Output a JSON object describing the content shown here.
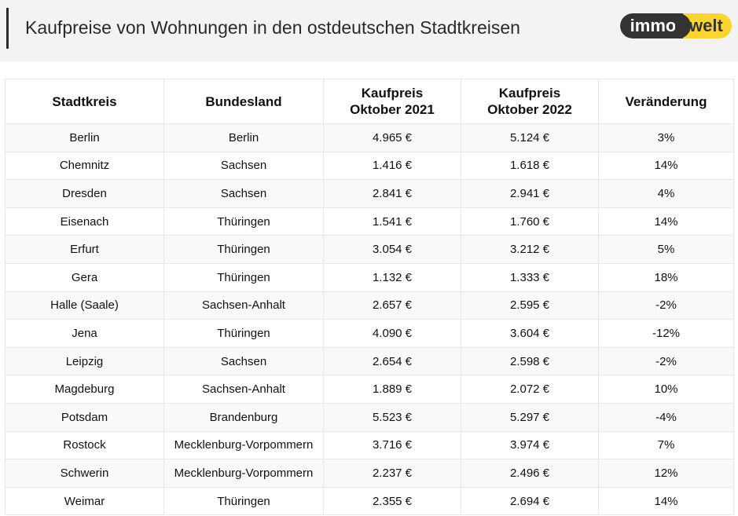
{
  "header": {
    "title": "Kaufpreise von Wohnungen in den ostdeutschen Stadtkreisen",
    "logo": {
      "left_text": "immo",
      "right_text": "welt",
      "brand_yellow": "#fed52e",
      "brand_dark": "#333333"
    }
  },
  "table": {
    "columns": [
      "Stadtkreis",
      "Bundesland",
      "Kaufpreis Oktober 2021",
      "Kaufpreis Oktober 2022",
      "Veränderung"
    ],
    "column_lines": [
      [
        "Stadtkreis"
      ],
      [
        "Bundesland"
      ],
      [
        "Kaufpreis",
        "Oktober 2021"
      ],
      [
        "Kaufpreis",
        "Oktober 2022"
      ],
      [
        "Veränderung"
      ]
    ],
    "rows": [
      [
        "Berlin",
        "Berlin",
        "4.965 €",
        "5.124 €",
        "3%"
      ],
      [
        "Chemnitz",
        "Sachsen",
        "1.416 €",
        "1.618 €",
        "14%"
      ],
      [
        "Dresden",
        "Sachsen",
        "2.841 €",
        "2.941 €",
        "4%"
      ],
      [
        "Eisenach",
        "Thüringen",
        "1.541 €",
        "1.760 €",
        "14%"
      ],
      [
        "Erfurt",
        "Thüringen",
        "3.054 €",
        "3.212 €",
        "5%"
      ],
      [
        "Gera",
        "Thüringen",
        "1.132 €",
        "1.333 €",
        "18%"
      ],
      [
        "Halle (Saale)",
        "Sachsen-Anhalt",
        "2.657 €",
        "2.595 €",
        "-2%"
      ],
      [
        "Jena",
        "Thüringen",
        "4.090 €",
        "3.604 €",
        "-12%"
      ],
      [
        "Leipzig",
        "Sachsen",
        "2.654 €",
        "2.598 €",
        "-2%"
      ],
      [
        "Magdeburg",
        "Sachsen-Anhalt",
        "1.889 €",
        "2.072 €",
        "10%"
      ],
      [
        "Potsdam",
        "Brandenburg",
        "5.523 €",
        "5.297 €",
        "-4%"
      ],
      [
        "Rostock",
        "Mecklenburg-Vorpommern",
        "3.716 €",
        "3.974 €",
        "7%"
      ],
      [
        "Schwerin",
        "Mecklenburg-Vorpommern",
        "2.237 €",
        "2.496 €",
        "12%"
      ],
      [
        "Weimar",
        "Thüringen",
        "2.355 €",
        "2.694 €",
        "14%"
      ]
    ]
  }
}
